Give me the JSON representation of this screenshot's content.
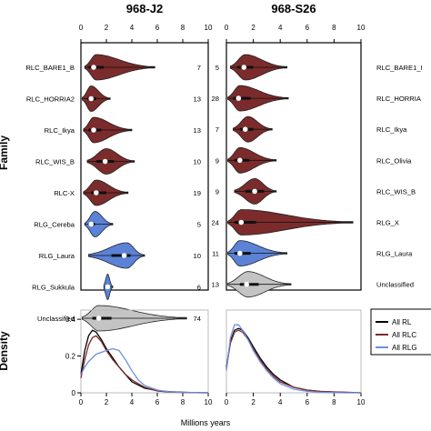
{
  "chart_data": [
    {
      "type": "violin",
      "title": "968-J2",
      "xlim": [
        0,
        10
      ],
      "x_ticks": [
        0,
        2,
        4,
        6,
        8,
        10
      ],
      "y_axis_label": "Family",
      "families": [
        {
          "name": "RLC_BARE1_B",
          "count": "7",
          "group": "RLC",
          "min": 0.3,
          "q1": 0.6,
          "median": 1.0,
          "q3": 1.8,
          "max": 5.8,
          "peak": 1.2
        },
        {
          "name": "RLC_HORRIA2",
          "count": "13",
          "group": "RLC",
          "min": 0.1,
          "q1": 0.5,
          "median": 0.8,
          "q3": 1.2,
          "max": 2.3,
          "peak": 0.8
        },
        {
          "name": "RLC_Ikya",
          "count": "13",
          "group": "RLC",
          "min": 0.2,
          "q1": 0.6,
          "median": 1.0,
          "q3": 1.6,
          "max": 4.0,
          "peak": 1.0
        },
        {
          "name": "RLC_WIS_B",
          "count": "10",
          "group": "RLC",
          "min": 0.5,
          "q1": 1.2,
          "median": 1.9,
          "q3": 2.6,
          "max": 4.2,
          "peak": 2.0
        },
        {
          "name": "RLC-X",
          "count": "19",
          "group": "RLC",
          "min": 0.2,
          "q1": 0.8,
          "median": 1.2,
          "q3": 2.0,
          "max": 3.7,
          "peak": 1.2
        },
        {
          "name": "RLG_Cereba",
          "count": "5",
          "group": "RLG",
          "min": 0.3,
          "q1": 0.6,
          "median": 0.8,
          "q3": 1.1,
          "max": 2.5,
          "peak": 1.1
        },
        {
          "name": "RLG_Laura",
          "count": "10",
          "group": "RLG",
          "min": 0.6,
          "q1": 2.4,
          "median": 3.4,
          "q3": 3.9,
          "max": 5.0,
          "peak": 3.6
        },
        {
          "name": "RLG_Sukkula",
          "count": "6",
          "group": "RLG",
          "min": 1.8,
          "q1": 1.95,
          "median": 2.1,
          "q3": 2.25,
          "max": 2.5,
          "peak": 2.1
        },
        {
          "name": "Unclassified",
          "count": "74",
          "group": "Unclassified",
          "min": 0.1,
          "q1": 0.9,
          "median": 1.4,
          "q3": 2.4,
          "max": 8.3,
          "peak": 1.4
        }
      ]
    },
    {
      "type": "violin",
      "title": "968-S26",
      "xlim": [
        0,
        10
      ],
      "x_ticks": [
        0,
        2,
        4,
        6,
        8,
        10
      ],
      "families": [
        {
          "name": "RLC_BARE1_I",
          "count": "5",
          "group": "RLC",
          "min": 0.3,
          "q1": 0.8,
          "median": 1.3,
          "q3": 2.0,
          "max": 4.5,
          "peak": 1.4
        },
        {
          "name": "RLC_HORRIA",
          "count": "28",
          "group": "RLC",
          "min": 0.1,
          "q1": 0.5,
          "median": 0.9,
          "q3": 1.8,
          "max": 4.6,
          "peak": 1.0
        },
        {
          "name": "RLC_Ikya",
          "count": "7",
          "group": "RLC",
          "min": 0.5,
          "q1": 1.0,
          "median": 1.4,
          "q3": 2.0,
          "max": 3.4,
          "peak": 1.6
        },
        {
          "name": "RLC_Olivia",
          "count": "9",
          "group": "RLC",
          "min": 0.1,
          "q1": 0.6,
          "median": 1.0,
          "q3": 1.7,
          "max": 3.7,
          "peak": 1.0
        },
        {
          "name": "RLC_WIS_B",
          "count": "9",
          "group": "RLC",
          "min": 0.6,
          "q1": 1.4,
          "median": 2.1,
          "q3": 2.8,
          "max": 3.7,
          "peak": 2.1
        },
        {
          "name": "RLG_X",
          "count": "24",
          "group": "RLC",
          "min": 0.1,
          "q1": 0.6,
          "median": 1.1,
          "q3": 2.2,
          "max": 9.4,
          "peak": 1.1
        },
        {
          "name": "RLG_Laura",
          "count": "11",
          "group": "RLG",
          "min": 0.1,
          "q1": 0.6,
          "median": 1.0,
          "q3": 1.8,
          "max": 4.5,
          "peak": 1.0
        },
        {
          "name": "Unclassified",
          "count": "13",
          "group": "Unclassified",
          "min": 0.1,
          "q1": 1.0,
          "median": 1.5,
          "q3": 2.4,
          "max": 4.8,
          "peak": 1.6
        }
      ]
    },
    {
      "type": "line",
      "xlim": [
        0,
        10
      ],
      "ylim": [
        0,
        0.45
      ],
      "x_ticks": [
        0,
        2,
        4,
        6,
        8,
        10
      ],
      "y_ticks": [
        "0",
        "0.2",
        "0.4"
      ],
      "ylabel": "Density",
      "series": [
        {
          "group": "all",
          "color": "#000000",
          "x": [
            0,
            0.3,
            0.6,
            0.9,
            1.2,
            1.6,
            2.0,
            2.5,
            3.0,
            3.5,
            4.0,
            5.0,
            6.0,
            7.0,
            8.0,
            9.0,
            10.0
          ],
          "y": [
            0.1,
            0.23,
            0.31,
            0.34,
            0.33,
            0.29,
            0.24,
            0.19,
            0.14,
            0.1,
            0.06,
            0.025,
            0.012,
            0.006,
            0.003,
            0.001,
            0
          ]
        },
        {
          "group": "rlc",
          "color": "#7b2b2b",
          "x": [
            0,
            0.3,
            0.6,
            0.9,
            1.2,
            1.6,
            2.0,
            2.5,
            3.0,
            3.5,
            4.0,
            5.0,
            6.0,
            7.0,
            8.0,
            9.0,
            10.0
          ],
          "y": [
            0.08,
            0.18,
            0.26,
            0.3,
            0.31,
            0.28,
            0.23,
            0.18,
            0.14,
            0.1,
            0.07,
            0.03,
            0.01,
            0.004,
            0.002,
            0.001,
            0
          ]
        },
        {
          "group": "rlg",
          "color": "#6f8fe0",
          "x": [
            0,
            0.3,
            0.6,
            0.9,
            1.2,
            1.6,
            2.0,
            2.5,
            3.0,
            3.5,
            4.0,
            4.5,
            5.0,
            6.0,
            7.0,
            8.0,
            10.0
          ],
          "y": [
            0.1,
            0.14,
            0.17,
            0.19,
            0.21,
            0.22,
            0.23,
            0.24,
            0.23,
            0.18,
            0.12,
            0.07,
            0.04,
            0.015,
            0.005,
            0.002,
            0
          ]
        }
      ]
    },
    {
      "type": "line",
      "xlim": [
        0,
        10
      ],
      "ylim": [
        0,
        0.45
      ],
      "x_ticks": [
        0,
        2,
        4,
        6,
        8,
        10
      ],
      "series": [
        {
          "group": "all",
          "color": "#000000",
          "x": [
            0,
            0.3,
            0.6,
            0.9,
            1.2,
            1.6,
            2.0,
            2.5,
            3.0,
            3.5,
            4.0,
            5.0,
            6.0,
            7.0,
            8.0,
            9.0,
            10.0
          ],
          "y": [
            0.14,
            0.28,
            0.34,
            0.35,
            0.34,
            0.3,
            0.25,
            0.19,
            0.14,
            0.1,
            0.07,
            0.03,
            0.015,
            0.007,
            0.004,
            0.002,
            0
          ]
        },
        {
          "group": "rlc",
          "color": "#7b2b2b",
          "x": [
            0,
            0.3,
            0.6,
            0.9,
            1.2,
            1.6,
            2.0,
            2.5,
            3.0,
            3.5,
            4.0,
            5.0,
            6.0,
            7.0,
            8.0,
            9.0,
            10.0
          ],
          "y": [
            0.13,
            0.27,
            0.33,
            0.34,
            0.33,
            0.29,
            0.24,
            0.18,
            0.13,
            0.09,
            0.06,
            0.03,
            0.015,
            0.008,
            0.005,
            0.003,
            0
          ]
        },
        {
          "group": "rlg",
          "color": "#6f8fe0",
          "x": [
            0,
            0.3,
            0.6,
            0.9,
            1.2,
            1.6,
            2.0,
            2.5,
            3.0,
            3.5,
            4.0,
            5.0,
            6.0,
            7.0,
            8.0,
            9.0,
            10.0
          ],
          "y": [
            0.12,
            0.3,
            0.37,
            0.37,
            0.34,
            0.29,
            0.23,
            0.17,
            0.12,
            0.08,
            0.05,
            0.02,
            0.008,
            0.003,
            0.001,
            0,
            0
          ]
        }
      ]
    }
  ],
  "legend": [
    {
      "label": "All RL",
      "color": "#000000"
    },
    {
      "label": "All RLC",
      "color": "#7b2b2b"
    },
    {
      "label": "All RLG",
      "color": "#6f8fe0"
    }
  ],
  "x_axis_label": "Millions years",
  "colors": {
    "RLC": "#7b2b2b",
    "RLG": "#5b82d6",
    "Unclassified": "#c4c4c4"
  }
}
